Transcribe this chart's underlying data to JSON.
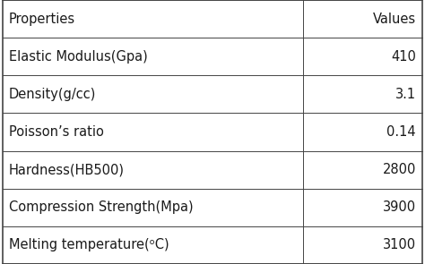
{
  "col_headers": [
    "Properties",
    "Values"
  ],
  "rows": [
    [
      "Elastic Modulus(Gpa)",
      "410"
    ],
    [
      "Density(g/cc)",
      "3.1"
    ],
    [
      "Poisson’s ratio",
      "0.14"
    ],
    [
      "Hardness(HB500)",
      "2800"
    ],
    [
      "Compression Strength(Mpa)",
      "3900"
    ],
    [
      "Melting temperature(ᵒC)",
      "3100"
    ]
  ],
  "bg_color": "#ffffff",
  "line_color": "#444444",
  "text_color": "#1a1a1a",
  "font_size": 10.5,
  "col_split": 0.715
}
